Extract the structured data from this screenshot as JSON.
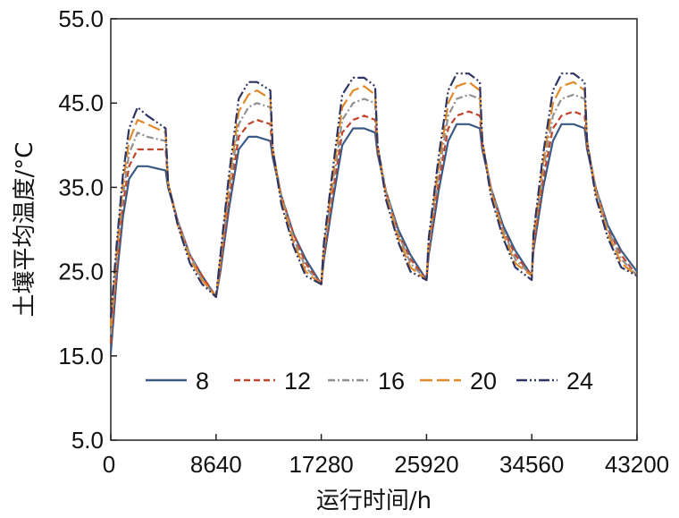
{
  "chart_data": {
    "type": "line",
    "xlabel": "运行时间/h",
    "ylabel": "土壤平均温度/°C",
    "xlim": [
      0,
      43200
    ],
    "ylim": [
      5,
      55
    ],
    "xticks": [
      0,
      8640,
      17280,
      25920,
      34560,
      43200
    ],
    "xtick_labels": [
      "0",
      "8640",
      "17280",
      "25920",
      "34560",
      "43200"
    ],
    "yticks": [
      5,
      15,
      25,
      35,
      45,
      55
    ],
    "ytick_labels": [
      "5.0",
      "15.0",
      "25.0",
      "35.0",
      "45.0",
      "55.0"
    ],
    "grid": false,
    "legend": "bottom-center",
    "x": [
      0,
      500,
      1000,
      1500,
      2200,
      3000,
      4500,
      4700,
      5500,
      6500,
      7500,
      8640,
      9000,
      9700,
      10500,
      11300,
      12000,
      13100,
      13300,
      14000,
      15000,
      16000,
      17280,
      17500,
      18300,
      19000,
      19900,
      20800,
      21700,
      21900,
      22600,
      23600,
      24600,
      25920,
      26100,
      26900,
      27700,
      28400,
      29400,
      30300,
      30500,
      31200,
      32200,
      33200,
      34560,
      34700,
      35500,
      36300,
      37000,
      38000,
      38900,
      39100,
      39800,
      40800,
      41900,
      43200
    ],
    "series": [
      {
        "name": "8",
        "color": "#3a5a85",
        "dash": "",
        "values": [
          15.3,
          24.5,
          31.5,
          36.0,
          37.5,
          37.5,
          37.0,
          35.0,
          31.0,
          27.0,
          24.5,
          22.0,
          25.0,
          32.5,
          39.5,
          41.0,
          41.0,
          40.5,
          38.5,
          34.0,
          29.5,
          26.5,
          23.5,
          26.5,
          34.0,
          40.0,
          42.0,
          42.0,
          41.5,
          39.0,
          34.5,
          30.0,
          27.0,
          24.0,
          27.0,
          34.5,
          40.5,
          42.5,
          42.5,
          42.0,
          39.5,
          35.0,
          30.5,
          27.5,
          24.5,
          27.5,
          35.0,
          40.5,
          42.5,
          42.5,
          42.0,
          39.5,
          35.0,
          30.5,
          27.5,
          25.0
        ]
      },
      {
        "name": "12",
        "color": "#c0442a",
        "dash": "7,4",
        "values": [
          16.5,
          25.5,
          33.0,
          37.5,
          39.5,
          39.5,
          39.5,
          35.5,
          31.0,
          27.0,
          24.5,
          22.0,
          25.5,
          33.5,
          41.0,
          42.5,
          43.0,
          42.5,
          39.0,
          34.0,
          29.5,
          26.0,
          23.5,
          27.0,
          35.0,
          41.5,
          43.0,
          43.5,
          43.0,
          39.5,
          34.5,
          29.5,
          26.5,
          24.0,
          27.5,
          35.5,
          42.0,
          43.5,
          44.0,
          43.5,
          40.0,
          35.0,
          30.0,
          27.0,
          24.5,
          28.0,
          36.0,
          42.0,
          43.5,
          44.0,
          43.5,
          40.0,
          35.0,
          30.0,
          27.0,
          24.5
        ]
      },
      {
        "name": "16",
        "color": "#909090",
        "dash": "8,3,2,3",
        "values": [
          17.5,
          26.5,
          34.0,
          39.0,
          41.5,
          41.0,
          40.5,
          35.5,
          31.0,
          27.0,
          24.0,
          22.0,
          26.0,
          34.5,
          42.5,
          44.5,
          45.0,
          44.5,
          39.5,
          34.0,
          29.0,
          25.5,
          23.5,
          27.5,
          36.0,
          43.0,
          45.0,
          45.5,
          45.0,
          40.0,
          34.5,
          29.5,
          26.0,
          24.0,
          28.0,
          36.5,
          43.5,
          45.5,
          46.0,
          45.5,
          40.5,
          35.0,
          30.0,
          26.5,
          24.5,
          28.5,
          37.0,
          43.5,
          45.5,
          46.0,
          45.5,
          40.5,
          35.0,
          30.0,
          26.5,
          24.5
        ]
      },
      {
        "name": "20",
        "color": "#e0892a",
        "dash": "14,5",
        "values": [
          18.5,
          27.5,
          35.5,
          40.5,
          43.0,
          42.5,
          41.5,
          35.5,
          30.5,
          26.5,
          24.0,
          22.0,
          26.5,
          35.5,
          44.0,
          46.0,
          46.5,
          45.5,
          39.5,
          33.5,
          28.5,
          25.0,
          23.5,
          28.0,
          37.0,
          44.5,
          46.5,
          47.0,
          46.0,
          40.0,
          34.0,
          29.0,
          25.5,
          24.0,
          28.5,
          37.5,
          45.0,
          47.0,
          47.5,
          46.5,
          40.5,
          34.5,
          29.5,
          26.0,
          24.5,
          29.0,
          38.0,
          45.0,
          47.0,
          47.5,
          46.5,
          40.5,
          34.5,
          29.5,
          26.0,
          24.5
        ]
      },
      {
        "name": "24",
        "color": "#2f3563",
        "dash": "12,3,2,3,2,3",
        "values": [
          19.5,
          28.5,
          36.5,
          42.0,
          44.5,
          43.5,
          42.0,
          35.5,
          30.5,
          26.0,
          23.5,
          22.0,
          27.0,
          36.5,
          45.5,
          47.5,
          47.5,
          46.5,
          39.5,
          33.0,
          28.0,
          24.5,
          23.5,
          28.5,
          38.0,
          46.0,
          48.0,
          48.0,
          47.0,
          40.0,
          33.5,
          28.5,
          25.0,
          24.0,
          29.0,
          38.5,
          46.5,
          48.5,
          48.5,
          47.5,
          40.5,
          34.0,
          29.0,
          25.5,
          24.0,
          29.5,
          39.0,
          46.5,
          48.5,
          48.5,
          47.5,
          40.5,
          34.0,
          29.0,
          25.5,
          24.5
        ]
      }
    ]
  }
}
